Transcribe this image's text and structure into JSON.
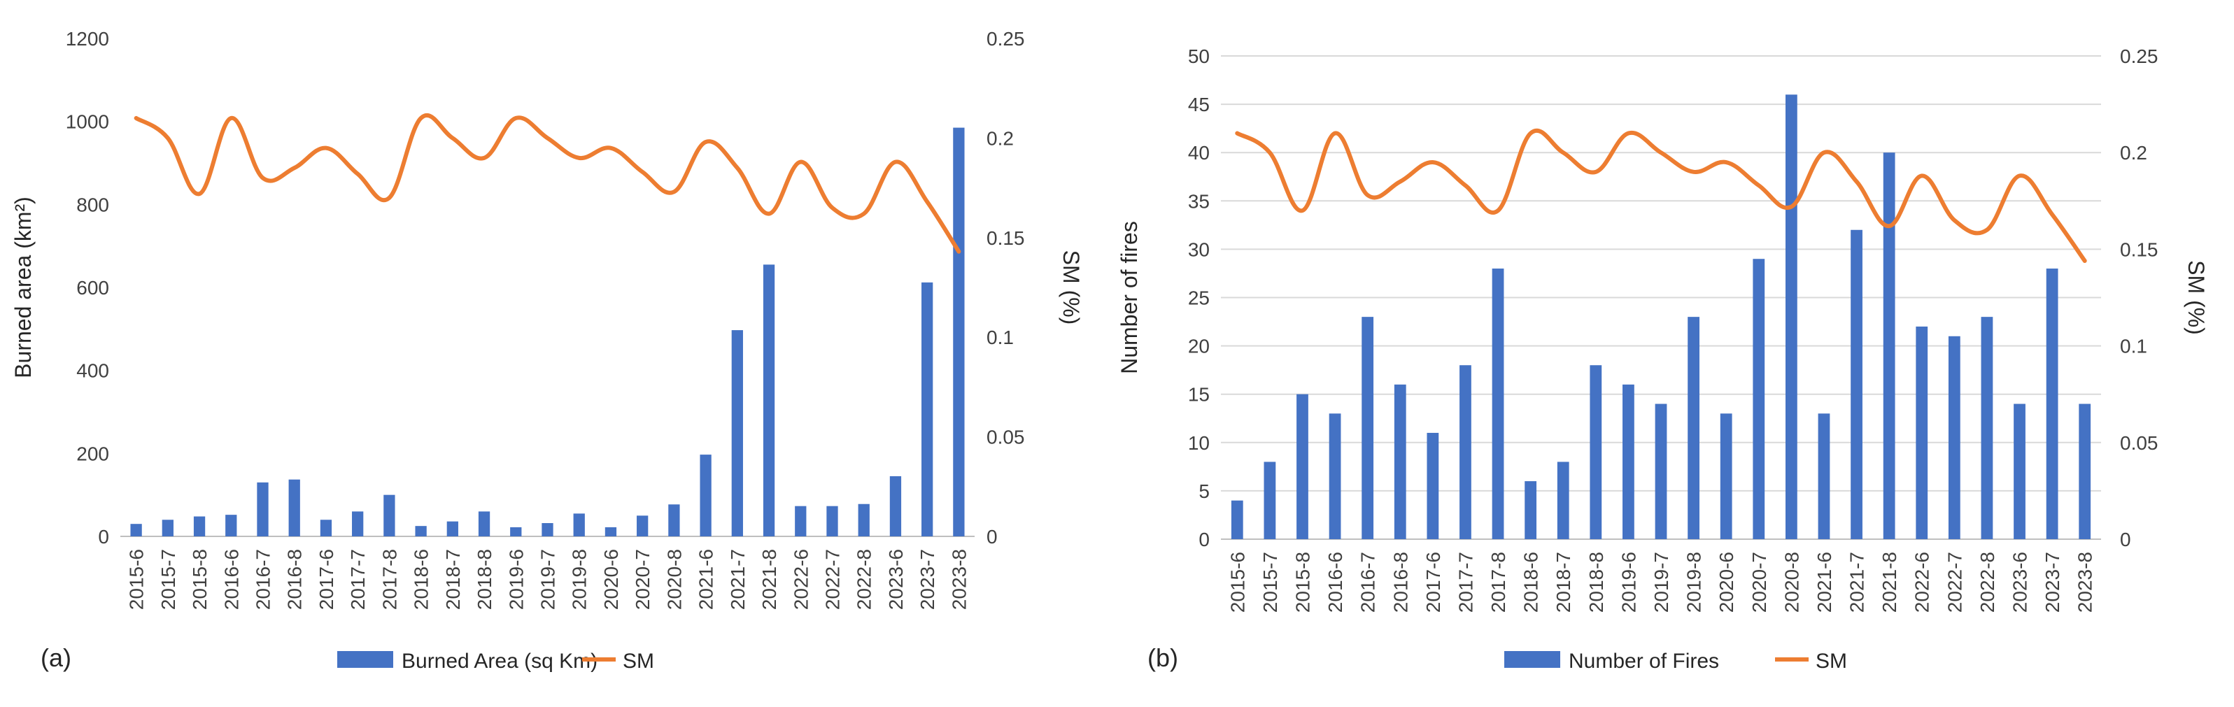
{
  "colors": {
    "bar": "#4472c4",
    "line": "#ed7d31"
  },
  "chart_data": [
    {
      "type": "bar",
      "panel_label": "(a)",
      "categories": [
        "2015-6",
        "2015-7",
        "2015-8",
        "2016-6",
        "2016-7",
        "2016-8",
        "2017-6",
        "2017-7",
        "2017-8",
        "2018-6",
        "2018-7",
        "2018-8",
        "2019-6",
        "2019-7",
        "2019-8",
        "2020-6",
        "2020-7",
        "2020-8",
        "2021-6",
        "2021-7",
        "2021-8",
        "2022-6",
        "2022-7",
        "2022-8",
        "2023-6",
        "2023-7",
        "2023-8"
      ],
      "series": [
        {
          "name": "Burned Area (sq Km)",
          "type": "bar",
          "axis": "left",
          "values": [
            30,
            40,
            48,
            52,
            130,
            137,
            40,
            60,
            100,
            25,
            36,
            60,
            22,
            32,
            55,
            22,
            50,
            77,
            197,
            497,
            655,
            73,
            73,
            78,
            145,
            612,
            985
          ]
        },
        {
          "name": "SM",
          "type": "line",
          "axis": "right",
          "values": [
            0.21,
            0.2,
            0.172,
            0.21,
            0.18,
            0.185,
            0.195,
            0.182,
            0.17,
            0.21,
            0.2,
            0.19,
            0.21,
            0.2,
            0.19,
            0.195,
            0.183,
            0.173,
            0.198,
            0.185,
            0.162,
            0.188,
            0.165,
            0.162,
            0.188,
            0.168,
            0.143
          ]
        }
      ],
      "ylabel": "Burned area (km²)",
      "ylim": [
        0,
        1200
      ],
      "yticks": [
        "0",
        "200",
        "400",
        "600",
        "800",
        "1000",
        "1200"
      ],
      "y2label": "SM (%)",
      "y2lim": [
        0,
        0.25
      ],
      "y2ticks": [
        "0",
        "0.05",
        "0.1",
        "0.15",
        "0.2",
        "0.25"
      ],
      "grid": false,
      "legend": [
        "Burned Area (sq Km)",
        "SM"
      ]
    },
    {
      "type": "bar",
      "panel_label": "(b)",
      "categories": [
        "2015-6",
        "2015-7",
        "2015-8",
        "2016-6",
        "2016-7",
        "2016-8",
        "2017-6",
        "2017-7",
        "2017-8",
        "2018-6",
        "2018-7",
        "2018-8",
        "2019-6",
        "2019-7",
        "2019-8",
        "2020-6",
        "2020-7",
        "2020-8",
        "2021-6",
        "2021-7",
        "2021-8",
        "2022-6",
        "2022-7",
        "2022-8",
        "2023-6",
        "2023-7",
        "2023-8"
      ],
      "series": [
        {
          "name": "Number of Fires",
          "type": "bar",
          "axis": "left",
          "values": [
            4,
            8,
            15,
            13,
            23,
            16,
            11,
            18,
            28,
            6,
            8,
            18,
            16,
            14,
            23,
            13,
            29,
            46,
            13,
            32,
            40,
            22,
            21,
            23,
            14,
            28,
            14
          ]
        },
        {
          "name": "SM",
          "type": "line",
          "axis": "right",
          "values": [
            0.21,
            0.2,
            0.17,
            0.21,
            0.178,
            0.185,
            0.195,
            0.183,
            0.17,
            0.21,
            0.2,
            0.19,
            0.21,
            0.2,
            0.19,
            0.195,
            0.183,
            0.172,
            0.2,
            0.185,
            0.162,
            0.188,
            0.165,
            0.16,
            0.188,
            0.168,
            0.144
          ]
        }
      ],
      "ylabel": "Number of fires",
      "ylim": [
        0,
        50
      ],
      "yticks": [
        "0",
        "5",
        "10",
        "15",
        "20",
        "25",
        "30",
        "35",
        "40",
        "45",
        "50"
      ],
      "y2label": "SM (%)",
      "y2lim": [
        0,
        0.25
      ],
      "y2ticks": [
        "0",
        "0.05",
        "0.1",
        "0.15",
        "0.2",
        "0.25"
      ],
      "grid": true,
      "legend": [
        "Number of Fires",
        "SM"
      ]
    }
  ]
}
